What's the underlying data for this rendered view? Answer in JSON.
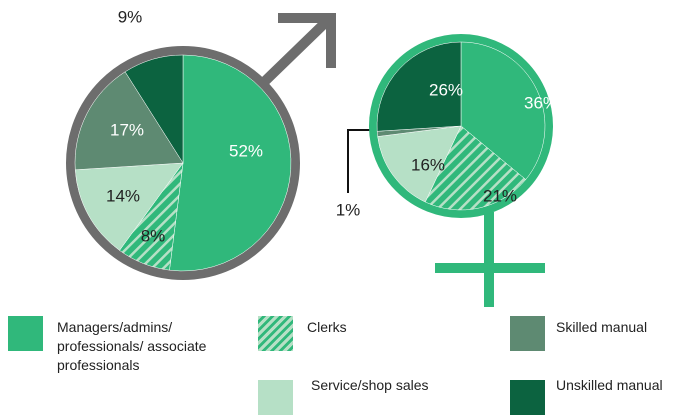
{
  "chart_data": [
    {
      "type": "pie",
      "categories": [
        "Managers/admins/ professionals/ associate professionals",
        "Clerks",
        "Service/shop sales",
        "Skilled manual",
        "Unskilled manual"
      ],
      "values": [
        52,
        8,
        14,
        17,
        9
      ],
      "value_labels": [
        "52%",
        "8%",
        "14%",
        "17%",
        "9%"
      ],
      "colors": [
        "#30b87b",
        "#30b87b",
        "#b6e0c6",
        "#5e8a72",
        "#0c6340"
      ],
      "hatched": [
        false,
        true,
        false,
        false,
        false
      ]
    },
    {
      "type": "pie",
      "categories": [
        "Managers/admins/ professionals/ associate professionals",
        "Clerks",
        "Service/shop sales",
        "Skilled manual",
        "Unskilled manual"
      ],
      "values": [
        36,
        21,
        16,
        1,
        26
      ],
      "value_labels": [
        "36%",
        "21%",
        "16%",
        "1%",
        "26%"
      ],
      "colors": [
        "#30b87b",
        "#30b87b",
        "#b6e0c6",
        "#5e8a72",
        "#0c6340"
      ],
      "hatched": [
        false,
        true,
        false,
        false,
        false
      ]
    }
  ]
}
